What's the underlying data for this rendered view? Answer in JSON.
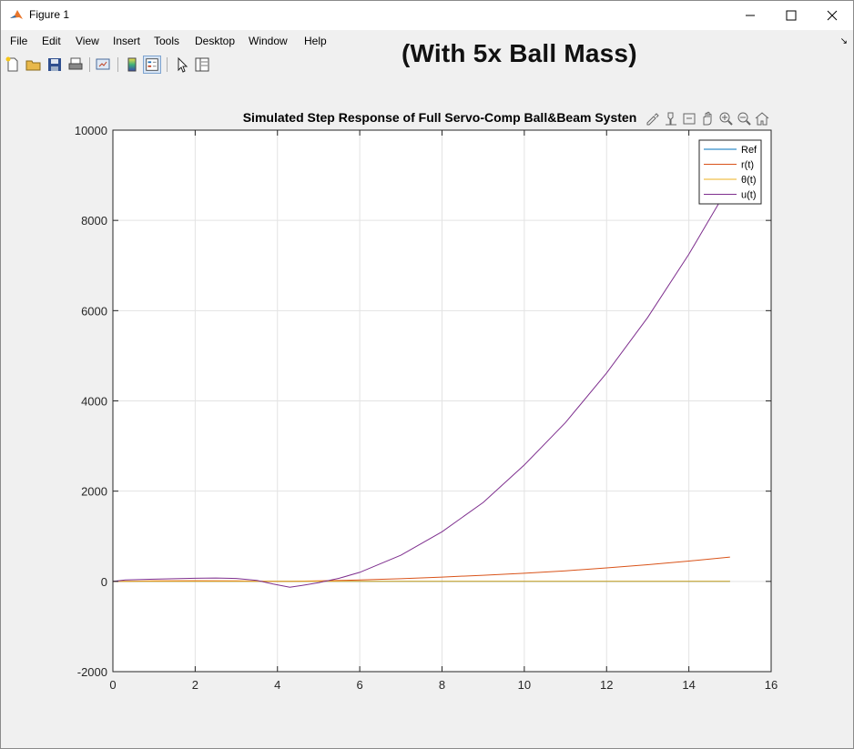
{
  "window": {
    "title": "Figure 1",
    "icon": "matlab-icon",
    "controls": [
      "minimize-icon",
      "maximize-icon",
      "close-icon"
    ]
  },
  "menu": {
    "items": [
      "File",
      "Edit",
      "View",
      "Insert",
      "Tools",
      "Desktop",
      "Window",
      "Help"
    ]
  },
  "overlay_caption": "(With 5x Ball Mass)",
  "toolbar": {
    "icons": [
      "new-figure-icon",
      "open-file-icon",
      "save-icon",
      "print-icon",
      "link-plot-icon",
      "colorbar-icon",
      "legend-icon",
      "pointer-icon",
      "property-inspector-icon"
    ]
  },
  "axes_toolbar": {
    "icons": [
      "brush-icon",
      "data-tips-icon",
      "export-icon",
      "pan-icon",
      "zoom-in-icon",
      "zoom-out-icon",
      "home-icon"
    ]
  },
  "chart_data": {
    "type": "line",
    "title": "Simulated Step Response of Full Servo-Comp Ball&Beam Systen",
    "xlabel": "",
    "ylabel": "",
    "xlim": [
      0,
      16
    ],
    "ylim": [
      -2000,
      10000
    ],
    "xticks": [
      0,
      2,
      4,
      6,
      8,
      10,
      12,
      14,
      16
    ],
    "yticks": [
      -2000,
      0,
      2000,
      4000,
      6000,
      8000,
      10000
    ],
    "grid": true,
    "legend_position": "top-right",
    "series": [
      {
        "name": "Ref",
        "color": "#0072bd",
        "x": [
          0,
          15
        ],
        "y": [
          1,
          1
        ]
      },
      {
        "name": "r(t)",
        "color": "#d95319",
        "x": [
          0,
          0.5,
          1,
          2,
          3,
          3.5,
          4,
          4.3,
          5,
          6,
          7,
          8,
          9,
          10,
          11,
          12,
          13,
          14,
          15
        ],
        "y": [
          0,
          5,
          10,
          15,
          10,
          5,
          2,
          0,
          10,
          30,
          60,
          95,
          135,
          180,
          235,
          300,
          370,
          450,
          540
        ]
      },
      {
        "name": "θ(t)",
        "color": "#edb120",
        "x": [
          0,
          15
        ],
        "y": [
          0,
          0
        ]
      },
      {
        "name": "u(t)",
        "color": "#7e2f8e",
        "x": [
          0,
          0.3,
          1,
          2,
          2.5,
          3,
          3.5,
          3.9,
          4.3,
          4.6,
          5,
          5.5,
          6,
          7,
          8,
          9,
          10,
          11,
          12,
          13,
          14,
          15
        ],
        "y": [
          0,
          30,
          50,
          70,
          75,
          65,
          20,
          -60,
          -130,
          -90,
          -30,
          70,
          200,
          580,
          1100,
          1750,
          2580,
          3520,
          4620,
          5850,
          7250,
          8800
        ]
      }
    ]
  }
}
